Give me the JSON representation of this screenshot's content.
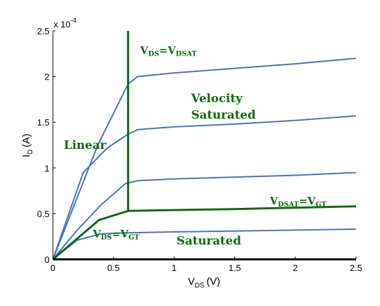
{
  "chart_data": {
    "type": "line",
    "xlabel": "V",
    "xlabel_sub": "DS",
    "xlabel_unit": "(V)",
    "ylabel": "I",
    "ylabel_sub": "D",
    "ylabel_unit": "(A)",
    "y_multiplier": "x 10",
    "y_multiplier_exp": "-4",
    "xlim": [
      0,
      2.5
    ],
    "ylim": [
      0,
      2.5
    ],
    "xticks": [
      "0",
      "0.5",
      "1",
      "1.5",
      "2",
      "2.5"
    ],
    "yticks": [
      "0",
      "0.5",
      "1",
      "1.5",
      "2",
      "2.5"
    ],
    "grid": false,
    "series_color": "#4472c4",
    "highlight_color": "#0a6b0a",
    "series": [
      {
        "x": [
          0,
          0.37,
          0.62,
          0.7,
          1.0,
          1.5,
          2.0,
          2.5
        ],
        "y": [
          0,
          1.25,
          1.92,
          2.0,
          2.04,
          2.09,
          2.14,
          2.2
        ]
      },
      {
        "x": [
          0,
          0.25,
          0.45,
          0.62,
          0.7,
          1.0,
          1.5,
          2.0,
          2.5
        ],
        "y": [
          0,
          0.95,
          1.22,
          1.37,
          1.42,
          1.45,
          1.48,
          1.52,
          1.57
        ]
      },
      {
        "x": [
          0,
          0.2,
          0.4,
          0.6,
          0.7,
          1.0,
          1.5,
          2.0,
          2.5
        ],
        "y": [
          0,
          0.32,
          0.6,
          0.83,
          0.86,
          0.88,
          0.9,
          0.92,
          0.95
        ]
      },
      {
        "x": [
          0,
          0.2,
          0.4,
          0.6,
          1.0,
          1.5,
          2.0,
          2.5
        ],
        "y": [
          0,
          0.21,
          0.28,
          0.29,
          0.3,
          0.31,
          0.32,
          0.33
        ]
      }
    ],
    "boundary_curves": [
      {
        "x": [
          0,
          0.38,
          0.62,
          1.0,
          1.5,
          2.0,
          2.5
        ],
        "y": [
          0,
          0.43,
          0.53,
          0.54,
          0.55,
          0.565,
          0.58
        ]
      },
      {
        "x": [
          0.62,
          0.62
        ],
        "y": [
          0.53,
          2.5
        ]
      }
    ],
    "annotations": [
      {
        "id": "vds-vdsat",
        "text": "V",
        "sub": "DS",
        "mid": "=V",
        "sub2": "DSAT",
        "x": 0.72,
        "y": 2.25,
        "size": 15
      },
      {
        "id": "velocity",
        "text": "Velocity",
        "x": 1.14,
        "y": 1.72,
        "size": 17
      },
      {
        "id": "saturated-top",
        "text": "Saturated",
        "x": 1.14,
        "y": 1.54,
        "size": 17
      },
      {
        "id": "linear",
        "text": "Linear",
        "x": 0.09,
        "y": 1.21,
        "size": 17
      },
      {
        "id": "vdsat-vgt",
        "text": "V",
        "sub": "DSAT",
        "mid": "=V",
        "sub2": "GT",
        "x": 1.79,
        "y": 0.6,
        "size": 15
      },
      {
        "id": "vds-vgt",
        "text": "V",
        "sub": "DS",
        "mid": "=V",
        "sub2": "GT",
        "x": 0.33,
        "y": 0.24,
        "size": 15
      },
      {
        "id": "saturated-bottom",
        "text": "Saturated",
        "x": 1.02,
        "y": 0.16,
        "size": 17
      }
    ]
  }
}
